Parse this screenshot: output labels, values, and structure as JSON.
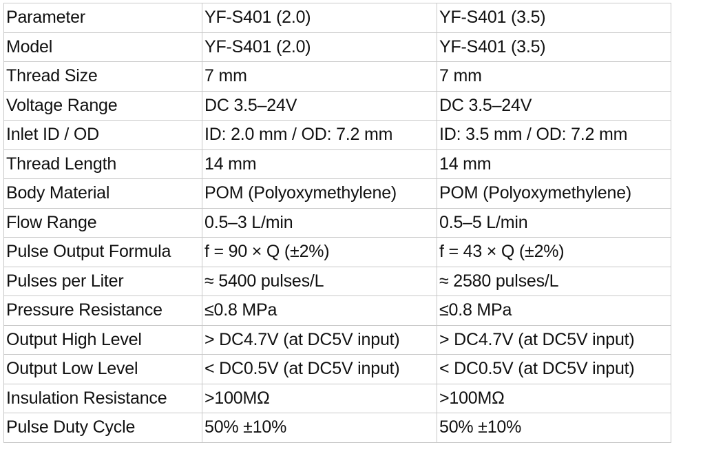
{
  "table": {
    "rows": [
      [
        "Parameter",
        "YF-S401 (2.0)",
        "YF-S401 (3.5)"
      ],
      [
        "Model",
        "YF-S401 (2.0)",
        "YF-S401 (3.5)"
      ],
      [
        "Thread Size",
        "7 mm",
        "7 mm"
      ],
      [
        "Voltage Range",
        "DC 3.5–24V",
        "DC 3.5–24V"
      ],
      [
        "Inlet ID / OD",
        "ID: 2.0 mm / OD: 7.2 mm",
        "ID: 3.5 mm / OD: 7.2 mm"
      ],
      [
        "Thread Length",
        "14 mm",
        "14 mm"
      ],
      [
        "Body Material",
        "POM (Polyoxymethylene)",
        "POM (Polyoxymethylene)"
      ],
      [
        "Flow Range",
        "0.5–3 L/min",
        "0.5–5 L/min"
      ],
      [
        "Pulse Output Formula",
        "f = 90 × Q (±2%)",
        "f = 43 × Q (±2%)"
      ],
      [
        "Pulses per Liter",
        "≈ 5400 pulses/L",
        "≈ 2580 pulses/L"
      ],
      [
        "Pressure Resistance",
        "≤0.8 MPa",
        "≤0.8 MPa"
      ],
      [
        "Output High Level",
        "> DC4.7V (at DC5V input)",
        "> DC4.7V (at DC5V input)"
      ],
      [
        "Output Low Level",
        "< DC0.5V (at DC5V input)",
        "< DC0.5V (at DC5V input)"
      ],
      [
        "Insulation Resistance",
        ">100MΩ",
        ">100MΩ"
      ],
      [
        "Pulse Duty Cycle",
        "50% ±10%",
        "50% ±10%"
      ]
    ]
  }
}
